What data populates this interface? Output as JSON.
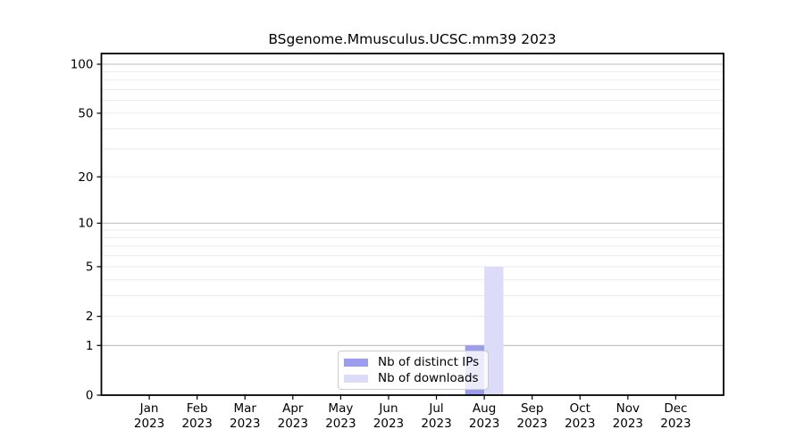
{
  "chart_data": {
    "type": "bar",
    "title": "BSgenome.Mmusculus.UCSC.mm39 2023",
    "categories": [
      "Jan",
      "Feb",
      "Mar",
      "Apr",
      "May",
      "Jun",
      "Jul",
      "Aug",
      "Sep",
      "Oct",
      "Nov",
      "Dec"
    ],
    "year_label": "2023",
    "series": [
      {
        "name": "Nb of distinct IPs",
        "color": "#9d9df0",
        "values": [
          0,
          0,
          0,
          0,
          0,
          0,
          0,
          1,
          0,
          0,
          0,
          0
        ]
      },
      {
        "name": "Nb of downloads",
        "color": "#dcdcf8",
        "values": [
          0,
          0,
          0,
          0,
          0,
          0,
          0,
          5,
          0,
          0,
          0,
          0
        ]
      }
    ],
    "xlabel": "",
    "ylabel": "",
    "y_scale": "log1p",
    "ylim": [
      0,
      117
    ],
    "y_tick_values": [
      0,
      1,
      2,
      5,
      10,
      20,
      50,
      100
    ],
    "y_tick_labels": [
      "0",
      "1",
      "2",
      "5",
      "10",
      "20",
      "50",
      "100"
    ],
    "grid": true,
    "grid_decade_values": [
      1,
      10,
      100
    ],
    "grid_minor_values": [
      2,
      3,
      4,
      5,
      6,
      7,
      8,
      9,
      20,
      30,
      40,
      50,
      60,
      70,
      80,
      90
    ],
    "legend_position": "bottom-center-inside",
    "colors": {
      "background": "#ffffff",
      "frame": "#000000",
      "tick_text": "#000000",
      "grid_decade": "#bbbbbb",
      "grid_minor": "#ebebeb",
      "legend_border": "#cccccc"
    }
  }
}
